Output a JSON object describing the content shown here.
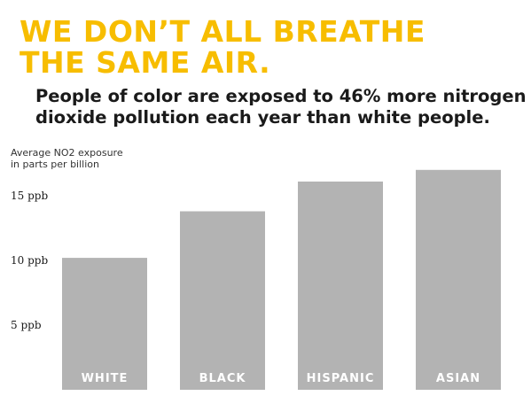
{
  "headline": {
    "line1": "WE DON’T ALL BREATHE",
    "line2": "THE SAME AIR."
  },
  "subhead": {
    "line1": "People of color are exposed to 46% more nitrogen",
    "line2": "dioxide pollution each year than white people."
  },
  "colors": {
    "headline": "#f7bd00",
    "bar": "#b3b3b3",
    "bar_label": "#ffffff",
    "text": "#1a1a1a"
  },
  "chart_data": {
    "type": "bar",
    "ylabel_lines": [
      "Average NO2 exposure",
      "in parts per billion"
    ],
    "categories": [
      "WHITE",
      "BLACK",
      "HISPANIC",
      "ASIAN"
    ],
    "values": [
      10.2,
      13.8,
      16.1,
      17.0
    ],
    "yticks": [
      {
        "value": 5,
        "label": "5 ppb"
      },
      {
        "value": 10,
        "label": "10 ppb"
      },
      {
        "value": 15,
        "label": "15 ppb"
      }
    ],
    "ylim": [
      0,
      18
    ],
    "grid": false,
    "legend": "none"
  }
}
